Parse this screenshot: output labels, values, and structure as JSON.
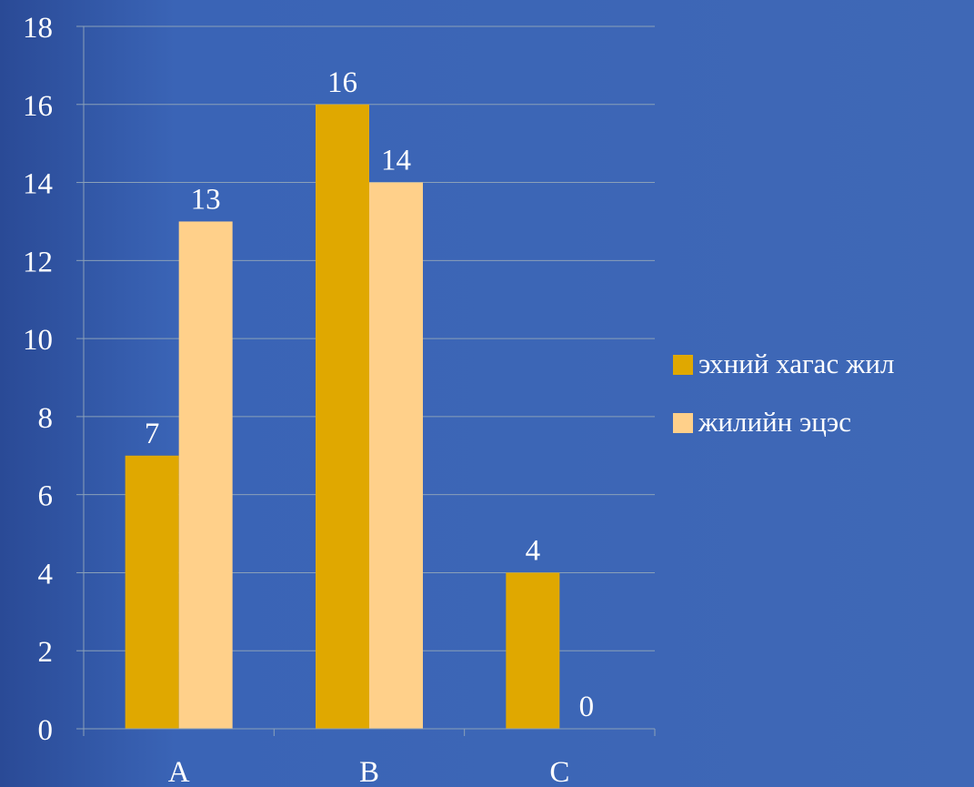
{
  "chart_data": {
    "type": "bar",
    "categories": [
      "A",
      "B",
      "C"
    ],
    "series": [
      {
        "name": "эхний хагас жил",
        "values": [
          7,
          16,
          4
        ],
        "color": "#e0a800"
      },
      {
        "name": "жилийн эцэс",
        "values": [
          13,
          14,
          0
        ],
        "color": "#ffd08a"
      }
    ],
    "ylim": [
      0,
      18
    ],
    "yticks": [
      0,
      2,
      4,
      6,
      8,
      10,
      12,
      14,
      16,
      18
    ],
    "grid": true,
    "legend_position": "right",
    "axis_color": "#8aa0b8",
    "title": "",
    "xlabel": "",
    "ylabel": ""
  }
}
